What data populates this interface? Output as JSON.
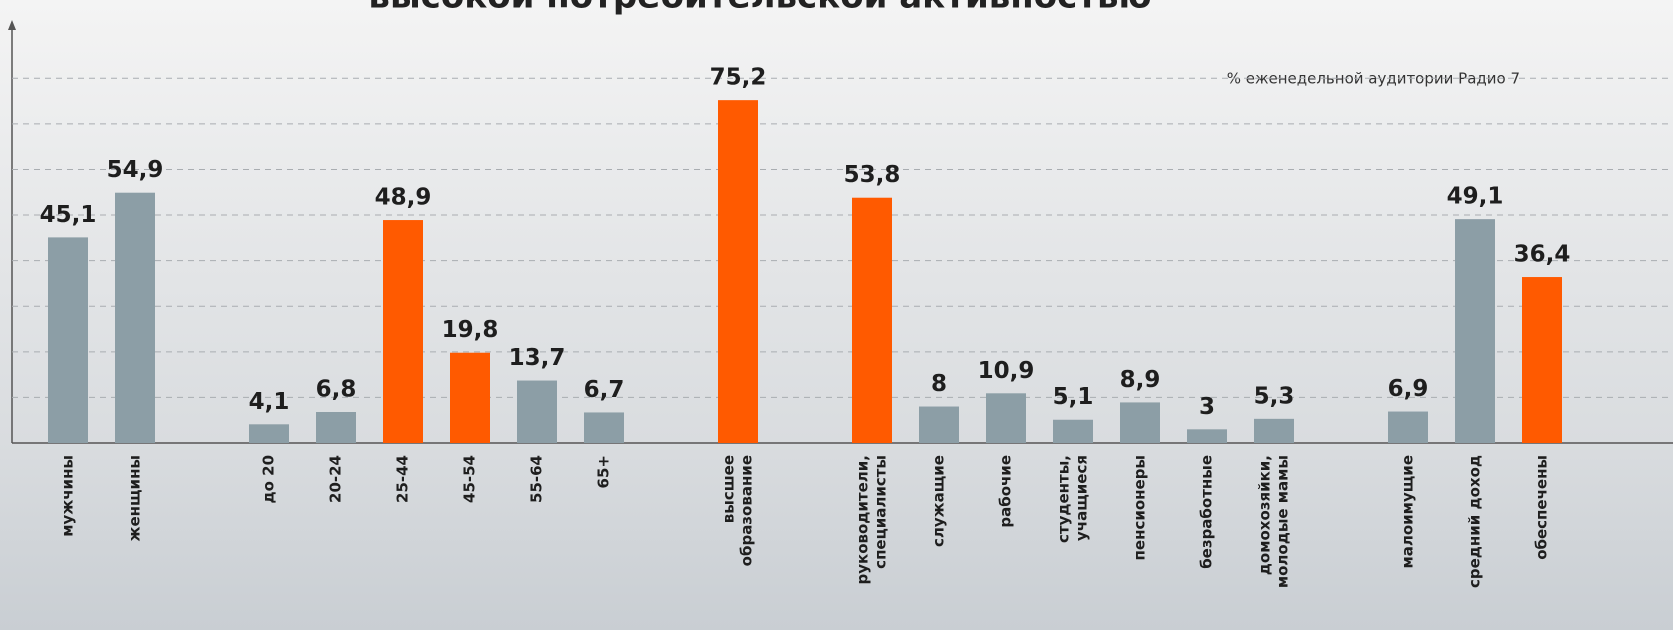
{
  "chart_data": {
    "type": "bar",
    "title": "высокой потребительской активностью",
    "annotation": "% еженедельной аудитории Радио 7",
    "categories": [
      "мужчины",
      "женщины",
      null,
      "до 20",
      "20-24",
      "25-44",
      "45-54",
      "55-64",
      "65+",
      null,
      [
        "высшее",
        "образование"
      ],
      null,
      [
        "руководители,",
        "специалисты"
      ],
      "служащие",
      "рабочие",
      [
        "студенты,",
        "учащиеся"
      ],
      "пенсионеры",
      "безработные",
      [
        "домохозяйки,",
        "молодые мамы"
      ],
      null,
      "малоимущие",
      "средний доход",
      "обеспечены"
    ],
    "values": [
      45.1,
      54.9,
      null,
      4.1,
      6.8,
      48.9,
      19.8,
      13.7,
      6.7,
      null,
      75.2,
      null,
      53.8,
      8,
      10.9,
      5.1,
      8.9,
      3,
      5.3,
      null,
      6.9,
      49.1,
      36.4
    ],
    "value_labels": [
      "45,1",
      "54,9",
      null,
      "4,1",
      "6,8",
      "48,9",
      "19,8",
      "13,7",
      "6,7",
      null,
      "75,2",
      null,
      "53,8",
      "8",
      "10,9",
      "5,1",
      "8,9",
      "3",
      "5,3",
      null,
      "6,9",
      "49,1",
      "36,4"
    ],
    "colors": [
      "#8c9ea6",
      "#8c9ea6",
      null,
      "#8c9ea6",
      "#8c9ea6",
      "#ff5a00",
      "#ff5a00",
      "#8c9ea6",
      "#8c9ea6",
      null,
      "#ff5a00",
      null,
      "#ff5a00",
      "#8c9ea6",
      "#8c9ea6",
      "#8c9ea6",
      "#8c9ea6",
      "#8c9ea6",
      "#8c9ea6",
      null,
      "#8c9ea6",
      "#8c9ea6",
      "#ff5a00"
    ],
    "ylim": [
      0,
      93
    ],
    "yticks": [
      10,
      20,
      30,
      40,
      50,
      60,
      70,
      80
    ],
    "grid": true
  }
}
